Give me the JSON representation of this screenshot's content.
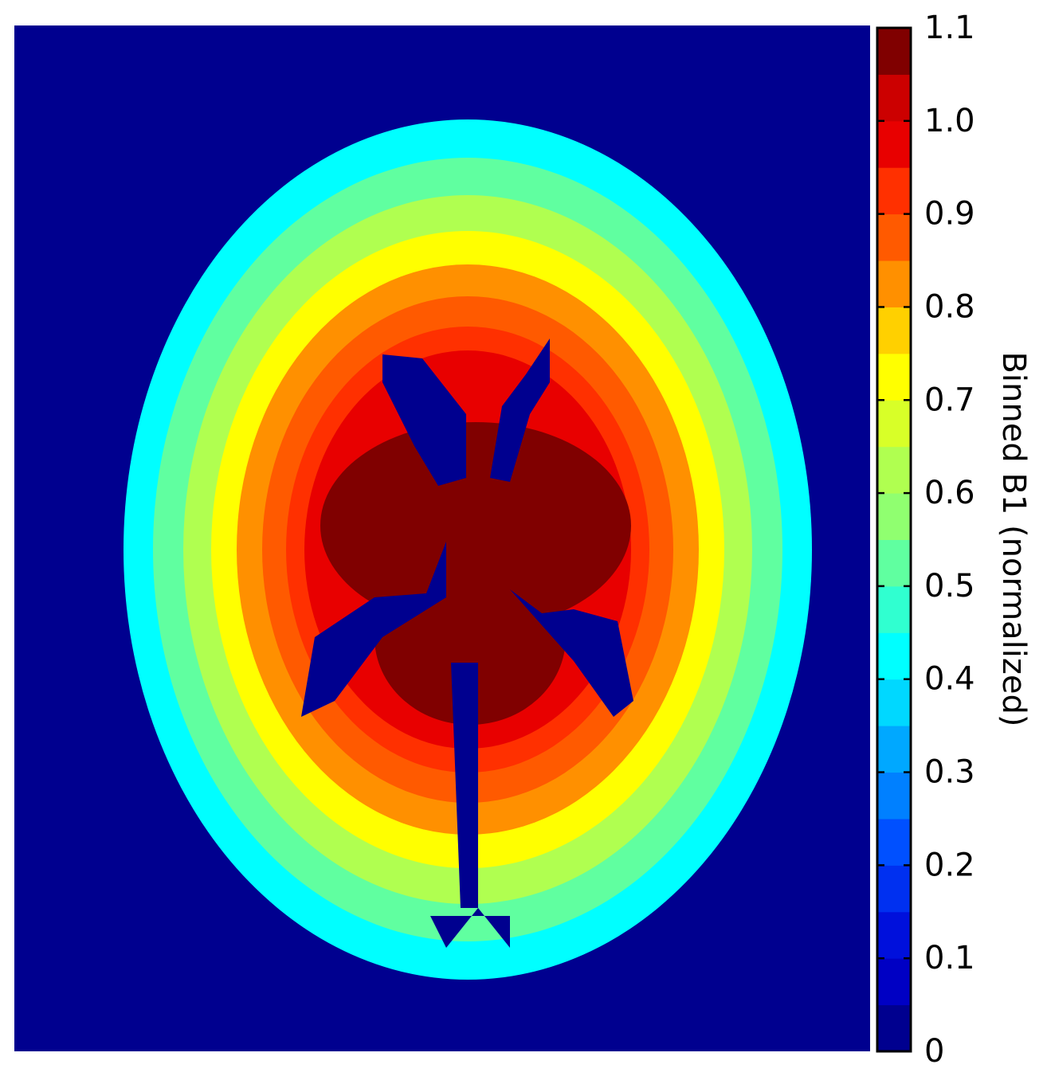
{
  "chart_data": {
    "type": "heatmap",
    "colorbar": {
      "label": "Binned B1 (normalized)",
      "bins": [
        0,
        0.05,
        0.1,
        0.15,
        0.2,
        0.25,
        0.3,
        0.35,
        0.4,
        0.45,
        0.5,
        0.55,
        0.6,
        0.65,
        0.7,
        0.75,
        0.8,
        0.85,
        0.9,
        0.95,
        1.0,
        1.05,
        1.1
      ],
      "colors": [
        "#00008f",
        "#0000c4",
        "#0010dc",
        "#0030f0",
        "#0050ff",
        "#0080ff",
        "#00a8ff",
        "#00d8ff",
        "#00ffff",
        "#30ffd0",
        "#60ffa0",
        "#90ff70",
        "#b0ff50",
        "#d8ff28",
        "#ffff00",
        "#ffd000",
        "#ff9000",
        "#ff5a00",
        "#ff3000",
        "#e80000",
        "#cc0000",
        "#800000"
      ],
      "lim": [
        0,
        1.1
      ],
      "ticks": [
        0,
        0.1,
        0.2,
        0.3,
        0.4,
        0.5,
        0.6,
        0.7,
        0.8,
        0.9,
        {
          "value": 1,
          "label": "1.0"
        },
        1.1
      ]
    }
  }
}
